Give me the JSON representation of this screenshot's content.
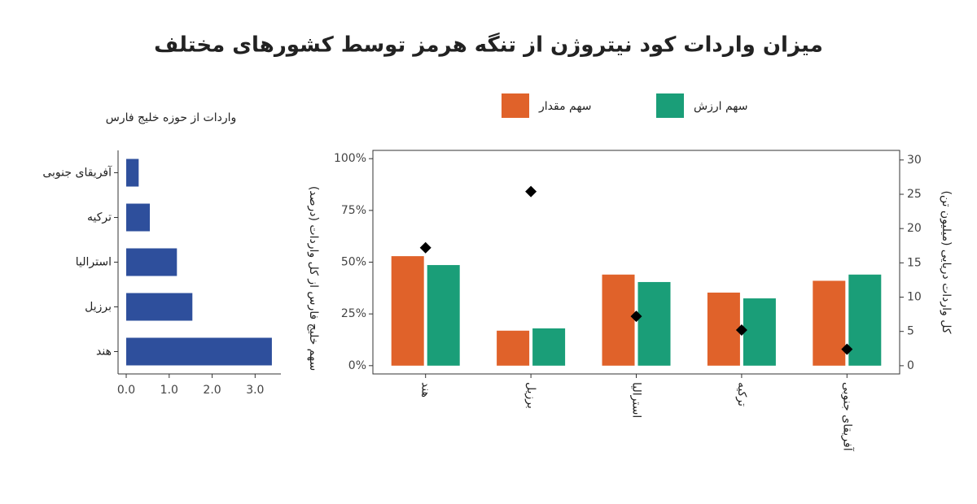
{
  "title": "میزان واردات کود نیتروژن از تنگه هرمز توسط کشورهای مختلف",
  "chart_data": [
    {
      "type": "hbar",
      "title": "واردات از حوزه خلیج فارس",
      "categories": [
        "آفریقای جنوبی",
        "ترکیه",
        "استرالیا",
        "برزیل",
        "هند"
      ],
      "values": [
        0.29,
        0.55,
        1.18,
        1.54,
        3.39
      ],
      "color": "#2e4f9c",
      "xlim": [
        -0.19,
        3.6
      ],
      "xticks": [
        {
          "value": 0,
          "label": "0.0"
        },
        {
          "value": 1,
          "label": "1.0"
        },
        {
          "value": 2,
          "label": "2.0"
        },
        {
          "value": 3,
          "label": "3.0"
        }
      ]
    },
    {
      "type": "bar",
      "ylabel": "سهم خلیج فارس از کل واردات (درصد)",
      "y2label": "کل واردات دریایی (میلیون تن)",
      "categories": [
        "هند",
        "برزیل",
        "استرالیا",
        "ترکیه",
        "آفریقای جنوبی"
      ],
      "series": [
        {
          "name": "سهم مقدار",
          "color": "#e0622a",
          "values": [
            52.9,
            16.9,
            44,
            35.3,
            41
          ]
        },
        {
          "name": "سهم ارزش",
          "color": "#1a9e78",
          "values": [
            48.6,
            18,
            40.4,
            32.5,
            44
          ]
        },
        {
          "color": "#000000",
          "values": [
            17.2,
            25.4,
            7.2,
            5.2,
            2.4
          ],
          "axis": "y2",
          "marker": "diamond"
        }
      ],
      "ylim": [
        -4,
        104
      ],
      "yticks": [
        {
          "value": 0,
          "label": "0%"
        },
        {
          "value": 25,
          "label": "25%"
        },
        {
          "value": 50,
          "label": "50%"
        },
        {
          "value": 75,
          "label": "75%"
        },
        {
          "value": 100,
          "label": "100%"
        }
      ],
      "y2lim": [
        -1.2,
        31.4
      ],
      "y2ticks": [
        0,
        5,
        10,
        15,
        20,
        25,
        30
      ],
      "legend": "top"
    }
  ]
}
